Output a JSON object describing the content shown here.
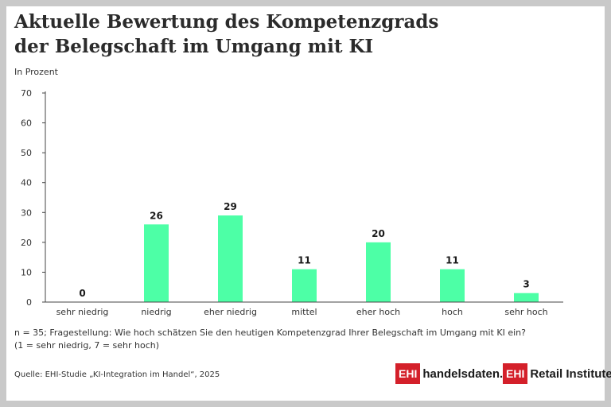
{
  "header": {
    "title_line1": "Aktuelle Bewertung des Kompetenzgrads",
    "title_line2": "der Belegschaft im Umgang mit KI"
  },
  "unit_label": "In Prozent",
  "footnote": {
    "line1": "n = 35; Fragestellung: Wie hoch schätzen Sie den heutigen Kompetenzgrad Ihrer Belegschaft im Umgang mit KI ein?",
    "line2": "(1 = sehr niedrig, 7 = sehr hoch)"
  },
  "source": "Quelle: EHI-Studie „KI-Integration im Handel“, 2025",
  "logos": {
    "logo1_box": "EHI",
    "logo1_text": "handelsdaten.de",
    "logo2_box": "EHI",
    "logo2_text": "Retail Institute",
    "logo2_mark": "®"
  },
  "chart_data": {
    "type": "bar",
    "categories": [
      "sehr niedrig",
      "niedrig",
      "eher niedrig",
      "mittel",
      "eher hoch",
      "hoch",
      "sehr hoch"
    ],
    "values": [
      0,
      26,
      29,
      11,
      20,
      11,
      3
    ],
    "ylabel": "In Prozent",
    "ylim": [
      0,
      70
    ],
    "yticks": [
      0,
      10,
      20,
      30,
      40,
      50,
      60,
      70
    ],
    "grid": false,
    "data_labels": true,
    "bar_color": "#4dffa6"
  }
}
